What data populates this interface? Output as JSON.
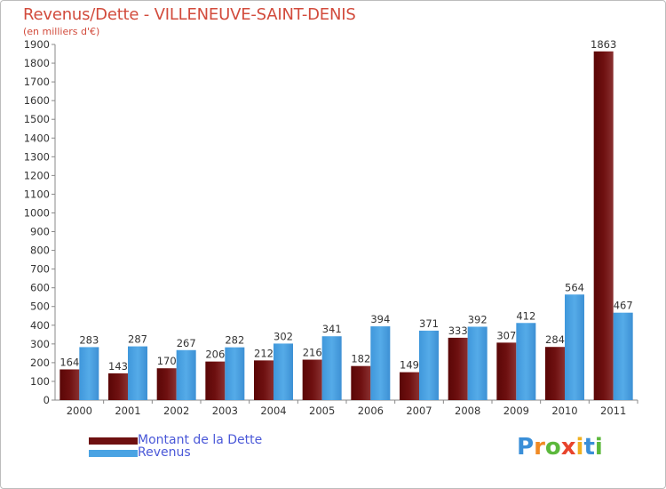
{
  "chart_data": {
    "type": "bar",
    "title": "Revenus/Dette - VILLENEUVE-SAINT-DENIS",
    "subtitle": "(en milliers d'€)",
    "categories": [
      "2000",
      "2001",
      "2002",
      "2003",
      "2004",
      "2005",
      "2006",
      "2007",
      "2008",
      "2009",
      "2010",
      "2011"
    ],
    "series": [
      {
        "name": "Montant de la Dette",
        "color": "#6e1010",
        "values": [
          164,
          143,
          170,
          206,
          212,
          216,
          182,
          149,
          333,
          307,
          284,
          1863
        ]
      },
      {
        "name": "Revenus",
        "color": "#4aa3e3",
        "values": [
          283,
          287,
          267,
          282,
          302,
          341,
          394,
          371,
          392,
          412,
          564,
          467
        ]
      }
    ],
    "ylim": [
      0,
      1900
    ],
    "yticks": [
      0,
      100,
      200,
      300,
      400,
      500,
      600,
      700,
      800,
      900,
      1000,
      1100,
      1200,
      1300,
      1400,
      1500,
      1600,
      1700,
      1800,
      1900
    ],
    "grid": false,
    "legend": "bottom-left"
  },
  "legend": [
    {
      "label": "Montant de la Dette",
      "color": "#6e1010"
    },
    {
      "label": "Revenus",
      "color": "#4aa3e3"
    }
  ],
  "logo": {
    "letters": [
      "P",
      "r",
      "o",
      "x",
      "i",
      "t",
      "i"
    ],
    "colors": [
      "#3a8fd8",
      "#f08a24",
      "#5cb83c",
      "#e8442c",
      "#f0b020",
      "#3a8fd8",
      "#5cb83c"
    ]
  }
}
